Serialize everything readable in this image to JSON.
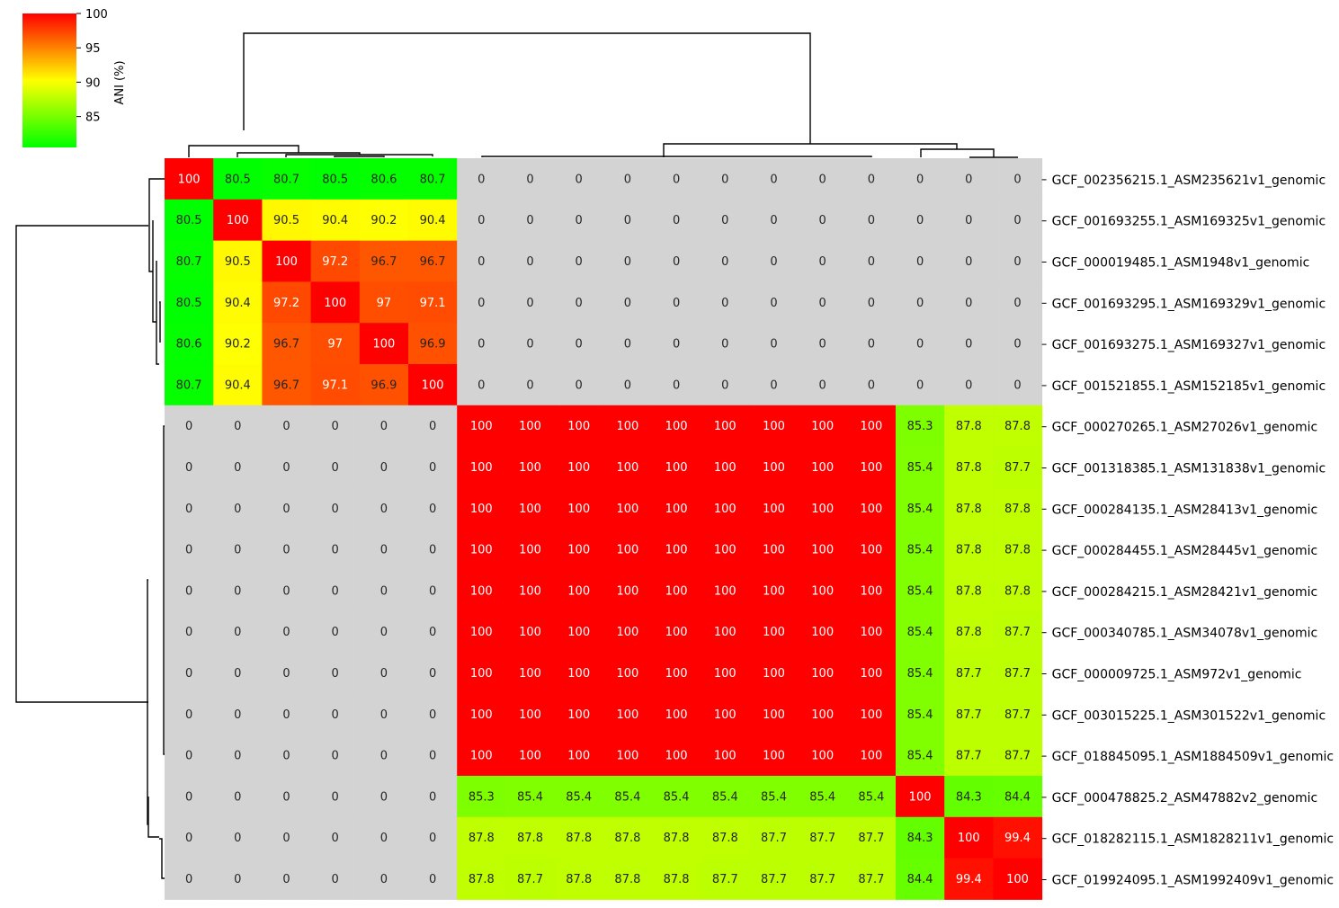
{
  "chart_data": {
    "type": "heatmap",
    "colorbar": {
      "label": "ANI (%)",
      "ticks": [
        85,
        90,
        95,
        100
      ],
      "range": [
        80.5,
        100
      ],
      "colors": [
        "#00ff00",
        "#ffff00",
        "#ff0000"
      ]
    },
    "zero_color": "#d3d3d3",
    "row_labels": [
      "GCF_002356215.1_ASM235621v1_genomic",
      "GCF_001693255.1_ASM169325v1_genomic",
      "GCF_000019485.1_ASM1948v1_genomic",
      "GCF_001693295.1_ASM169329v1_genomic",
      "GCF_001693275.1_ASM169327v1_genomic",
      "GCF_001521855.1_ASM152185v1_genomic",
      "GCF_000270265.1_ASM27026v1_genomic",
      "GCF_001318385.1_ASM131838v1_genomic",
      "GCF_000284135.1_ASM28413v1_genomic",
      "GCF_000284455.1_ASM28445v1_genomic",
      "GCF_000284215.1_ASM28421v1_genomic",
      "GCF_000340785.1_ASM34078v1_genomic",
      "GCF_000009725.1_ASM972v1_genomic",
      "GCF_003015225.1_ASM301522v1_genomic",
      "GCF_018845095.1_ASM1884509v1_genomic",
      "GCF_000478825.2_ASM47882v2_genomic",
      "GCF_018282115.1_ASM1828211v1_genomic",
      "GCF_019924095.1_ASM1992409v1_genomic"
    ],
    "values": [
      [
        100,
        80.5,
        80.7,
        80.5,
        80.6,
        80.7,
        0,
        0,
        0,
        0,
        0,
        0,
        0,
        0,
        0,
        0,
        0,
        0
      ],
      [
        80.5,
        100,
        90.5,
        90.4,
        90.2,
        90.4,
        0,
        0,
        0,
        0,
        0,
        0,
        0,
        0,
        0,
        0,
        0,
        0
      ],
      [
        80.7,
        90.5,
        100,
        97.2,
        96.7,
        96.7,
        0,
        0,
        0,
        0,
        0,
        0,
        0,
        0,
        0,
        0,
        0,
        0
      ],
      [
        80.5,
        90.4,
        97.2,
        100,
        97,
        97.1,
        0,
        0,
        0,
        0,
        0,
        0,
        0,
        0,
        0,
        0,
        0,
        0
      ],
      [
        80.6,
        90.2,
        96.7,
        97,
        100,
        96.9,
        0,
        0,
        0,
        0,
        0,
        0,
        0,
        0,
        0,
        0,
        0,
        0
      ],
      [
        80.7,
        90.4,
        96.7,
        97.1,
        96.9,
        100,
        0,
        0,
        0,
        0,
        0,
        0,
        0,
        0,
        0,
        0,
        0,
        0
      ],
      [
        0,
        0,
        0,
        0,
        0,
        0,
        100,
        100,
        100,
        100,
        100,
        100,
        100,
        100,
        100,
        85.3,
        87.8,
        87.8
      ],
      [
        0,
        0,
        0,
        0,
        0,
        0,
        100,
        100,
        100,
        100,
        100,
        100,
        100,
        100,
        100,
        85.4,
        87.8,
        87.7
      ],
      [
        0,
        0,
        0,
        0,
        0,
        0,
        100,
        100,
        100,
        100,
        100,
        100,
        100,
        100,
        100,
        85.4,
        87.8,
        87.8
      ],
      [
        0,
        0,
        0,
        0,
        0,
        0,
        100,
        100,
        100,
        100,
        100,
        100,
        100,
        100,
        100,
        85.4,
        87.8,
        87.8
      ],
      [
        0,
        0,
        0,
        0,
        0,
        0,
        100,
        100,
        100,
        100,
        100,
        100,
        100,
        100,
        100,
        85.4,
        87.8,
        87.8
      ],
      [
        0,
        0,
        0,
        0,
        0,
        0,
        100,
        100,
        100,
        100,
        100,
        100,
        100,
        100,
        100,
        85.4,
        87.8,
        87.7
      ],
      [
        0,
        0,
        0,
        0,
        0,
        0,
        100,
        100,
        100,
        100,
        100,
        100,
        100,
        100,
        100,
        85.4,
        87.7,
        87.7
      ],
      [
        0,
        0,
        0,
        0,
        0,
        0,
        100,
        100,
        100,
        100,
        100,
        100,
        100,
        100,
        100,
        85.4,
        87.7,
        87.7
      ],
      [
        0,
        0,
        0,
        0,
        0,
        0,
        100,
        100,
        100,
        100,
        100,
        100,
        100,
        100,
        100,
        85.4,
        87.7,
        87.7
      ],
      [
        0,
        0,
        0,
        0,
        0,
        0,
        85.3,
        85.4,
        85.4,
        85.4,
        85.4,
        85.4,
        85.4,
        85.4,
        85.4,
        100,
        84.3,
        84.4
      ],
      [
        0,
        0,
        0,
        0,
        0,
        0,
        87.8,
        87.8,
        87.8,
        87.8,
        87.8,
        87.8,
        87.7,
        87.7,
        87.7,
        84.3,
        100,
        99.4
      ],
      [
        0,
        0,
        0,
        0,
        0,
        0,
        87.8,
        87.7,
        87.8,
        87.8,
        87.8,
        87.7,
        87.7,
        87.7,
        87.7,
        84.4,
        99.4,
        100
      ]
    ]
  }
}
